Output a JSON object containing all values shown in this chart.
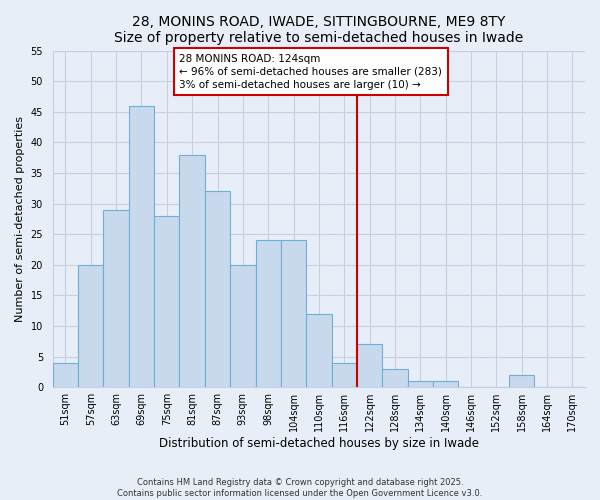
{
  "title": "28, MONINS ROAD, IWADE, SITTINGBOURNE, ME9 8TY",
  "subtitle": "Size of property relative to semi-detached houses in Iwade",
  "xlabel": "Distribution of semi-detached houses by size in Iwade",
  "ylabel": "Number of semi-detached properties",
  "bin_labels": [
    "51sqm",
    "57sqm",
    "63sqm",
    "69sqm",
    "75sqm",
    "81sqm",
    "87sqm",
    "93sqm",
    "98sqm",
    "104sqm",
    "110sqm",
    "116sqm",
    "122sqm",
    "128sqm",
    "134sqm",
    "140sqm",
    "146sqm",
    "152sqm",
    "158sqm",
    "164sqm",
    "170sqm"
  ],
  "bar_heights": [
    4,
    20,
    29,
    46,
    28,
    38,
    32,
    20,
    24,
    24,
    12,
    4,
    7,
    3,
    1,
    1,
    0,
    0,
    2,
    0,
    0
  ],
  "bar_color": "#c8d9ee",
  "bar_edge_color": "#6baed6",
  "vline_x_index": 12,
  "vline_color": "#cc0000",
  "annotation_title": "28 MONINS ROAD: 124sqm",
  "annotation_line1": "← 96% of semi-detached houses are smaller (283)",
  "annotation_line2": "3% of semi-detached houses are larger (10) →",
  "annotation_box_color": "#ffffff",
  "annotation_box_edge": "#cc0000",
  "ylim": [
    0,
    55
  ],
  "yticks": [
    0,
    5,
    10,
    15,
    20,
    25,
    30,
    35,
    40,
    45,
    50,
    55
  ],
  "footnote1": "Contains HM Land Registry data © Crown copyright and database right 2025.",
  "footnote2": "Contains public sector information licensed under the Open Government Licence v3.0.",
  "bg_color": "#e8eef7",
  "grid_color": "#c8cfe0",
  "title_fontsize": 10,
  "subtitle_fontsize": 9,
  "axis_label_fontsize": 8,
  "tick_fontsize": 7
}
